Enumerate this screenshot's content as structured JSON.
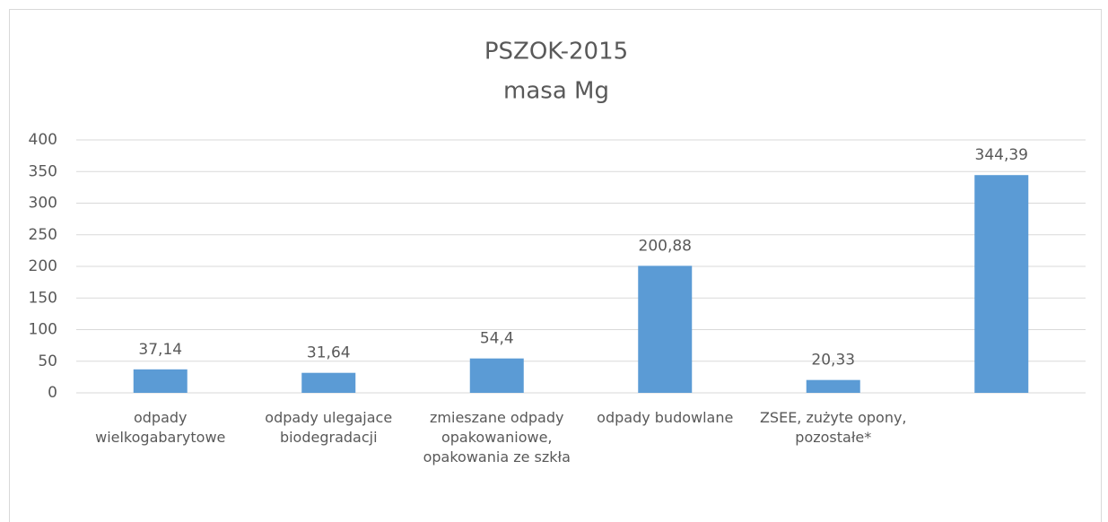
{
  "chart_data": {
    "type": "bar",
    "title": "PSZOK-2015",
    "subtitle": "masa Mg",
    "categories": [
      "odpady wielkogabarytowe",
      "odpady ulegajace biodegradacji",
      "zmieszane odpady opakowaniowe, opakowania ze szkła",
      "odpady budowlane",
      "ZSEE, zużyte opony, pozostałe*",
      null
    ],
    "values": [
      37.14,
      31.64,
      54.4,
      200.88,
      20.33,
      344.39
    ],
    "value_labels": [
      "37,14",
      "31,64",
      "54,4",
      "200,88",
      "20,33",
      "344,39"
    ],
    "color": "#5b9bd5",
    "ylim": [
      0,
      400
    ],
    "yticks": [
      0,
      50,
      100,
      150,
      200,
      250,
      300,
      350,
      400
    ],
    "grid": true
  }
}
